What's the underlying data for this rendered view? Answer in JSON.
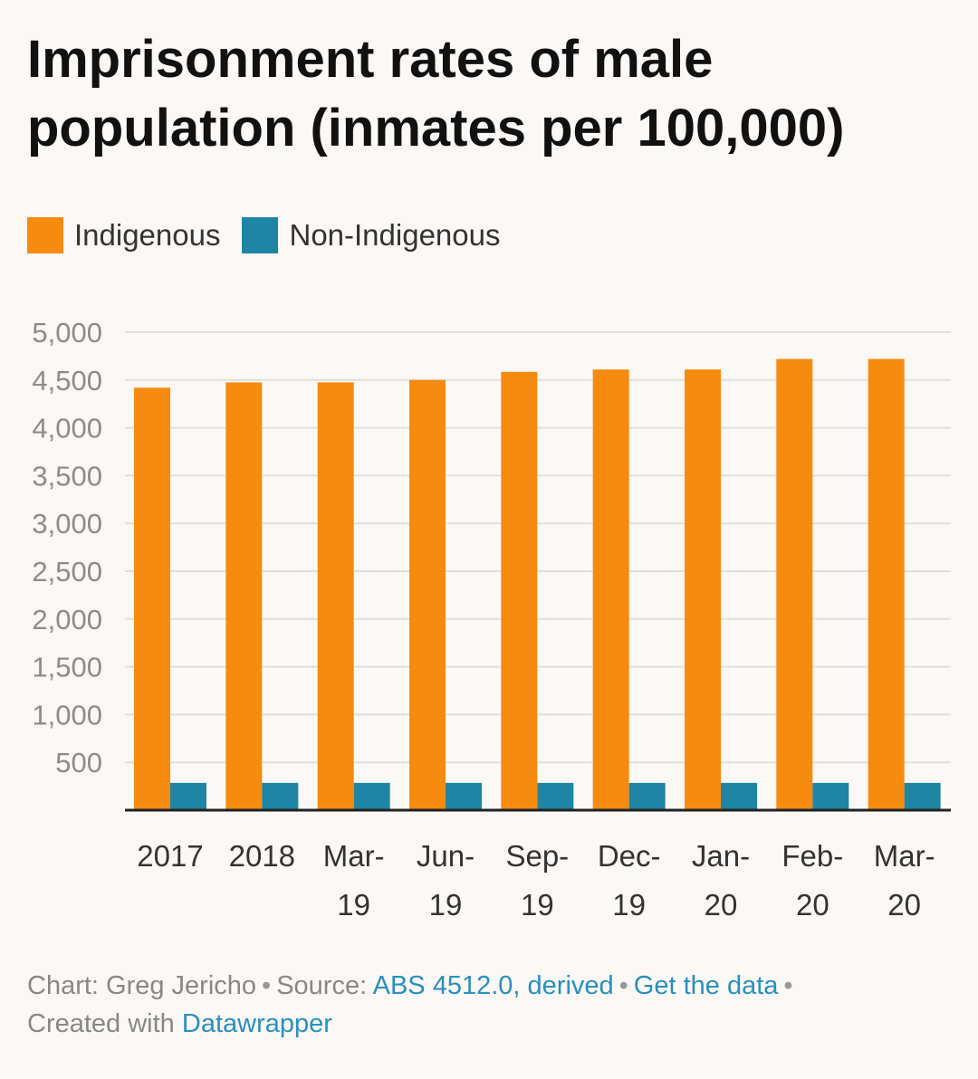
{
  "title": "Imprisonment rates of male population (inmates per 100,000)",
  "colors": {
    "indigenous": "#f68b0f",
    "non_indigenous": "#1e86a4",
    "grid": "#e3e0dc",
    "axis": "#222222",
    "tick": "#8c8c8c",
    "category": "#333333"
  },
  "footer": {
    "chart_label": "Chart: Greg Jericho",
    "source_label": "Source:",
    "source_link": "ABS 4512.0, derived",
    "data_link": "Get the data",
    "created_label": "Created with",
    "created_link": "Datawrapper"
  },
  "chart_data": {
    "type": "bar",
    "categories": [
      [
        "2017"
      ],
      [
        "2018"
      ],
      [
        "Mar-",
        "19"
      ],
      [
        "Jun-",
        "19"
      ],
      [
        "Sep-",
        "19"
      ],
      [
        "Dec-",
        "19"
      ],
      [
        "Jan-",
        "20"
      ],
      [
        "Feb-",
        "20"
      ],
      [
        "Mar-",
        "20"
      ]
    ],
    "series": [
      {
        "name": "Indigenous",
        "values": [
          4420,
          4475,
          4475,
          4500,
          4585,
          4610,
          4610,
          4720,
          4720
        ]
      },
      {
        "name": "Non-Indigenous",
        "values": [
          285,
          285,
          285,
          285,
          285,
          285,
          285,
          285,
          285
        ]
      }
    ],
    "y_ticks": [
      "500",
      "1,000",
      "1,500",
      "2,000",
      "2,500",
      "3,000",
      "3,500",
      "4,000",
      "4,500",
      "5,000"
    ],
    "y_tick_values": [
      500,
      1000,
      1500,
      2000,
      2500,
      3000,
      3500,
      4000,
      4500,
      5000
    ],
    "ylim": [
      0,
      5000
    ],
    "grid": true,
    "legend_position": "top-left"
  }
}
